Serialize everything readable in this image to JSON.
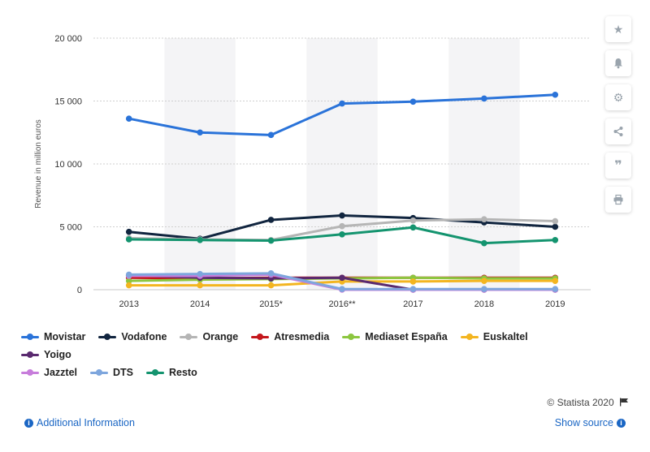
{
  "chart_data": {
    "type": "line",
    "title": "",
    "xlabel": "",
    "ylabel": "Revenue in million euros",
    "x": [
      "2013",
      "2014",
      "2015*",
      "2016**",
      "2017",
      "2018",
      "2019"
    ],
    "yticks": [
      "0",
      "5 000",
      "10 000",
      "15 000",
      "20 000"
    ],
    "ylim": [
      0,
      20000
    ],
    "grid": true,
    "legend_position": "bottom",
    "series": [
      {
        "name": "Movistar",
        "color": "#2a73d9",
        "values": [
          13600,
          12500,
          12300,
          14800,
          14950,
          15200,
          15500
        ]
      },
      {
        "name": "Vodafone",
        "color": "#11253f",
        "values": [
          4600,
          4050,
          5550,
          5900,
          5700,
          5350,
          5000
        ]
      },
      {
        "name": "Orange",
        "color": "#b5b5b5",
        "values": [
          4100,
          4000,
          3950,
          5050,
          5500,
          5600,
          5450
        ]
      },
      {
        "name": "Atresmedia",
        "color": "#c4161c",
        "values": [
          950,
          900,
          950,
          950,
          950,
          950,
          950
        ]
      },
      {
        "name": "Mediaset España",
        "color": "#8cc63f",
        "values": [
          700,
          800,
          850,
          900,
          950,
          900,
          900
        ]
      },
      {
        "name": "Euskaltel",
        "color": "#f3b520",
        "values": [
          350,
          350,
          350,
          650,
          650,
          700,
          700
        ]
      },
      {
        "name": "Yoigo",
        "color": "#5a2a6f",
        "values": [
          1150,
          950,
          900,
          950,
          0,
          0,
          0
        ]
      },
      {
        "name": "Jazztel",
        "color": "#c77ddb",
        "values": [
          1100,
          1100,
          1200,
          0,
          0,
          0,
          0
        ]
      },
      {
        "name": "DTS",
        "color": "#7ea6dd",
        "values": [
          1200,
          1250,
          1300,
          50,
          50,
          50,
          50
        ]
      },
      {
        "name": "Resto",
        "color": "#14946f",
        "values": [
          4000,
          3950,
          3900,
          4400,
          4950,
          3700,
          3950
        ]
      }
    ]
  },
  "toolbar": {
    "icons": [
      "star-icon",
      "bell-icon",
      "gear-icon",
      "share-icon",
      "quote-icon",
      "print-icon"
    ]
  },
  "footer": {
    "credit": "© Statista 2020",
    "additional_info": "Additional Information",
    "show_source": "Show source"
  }
}
